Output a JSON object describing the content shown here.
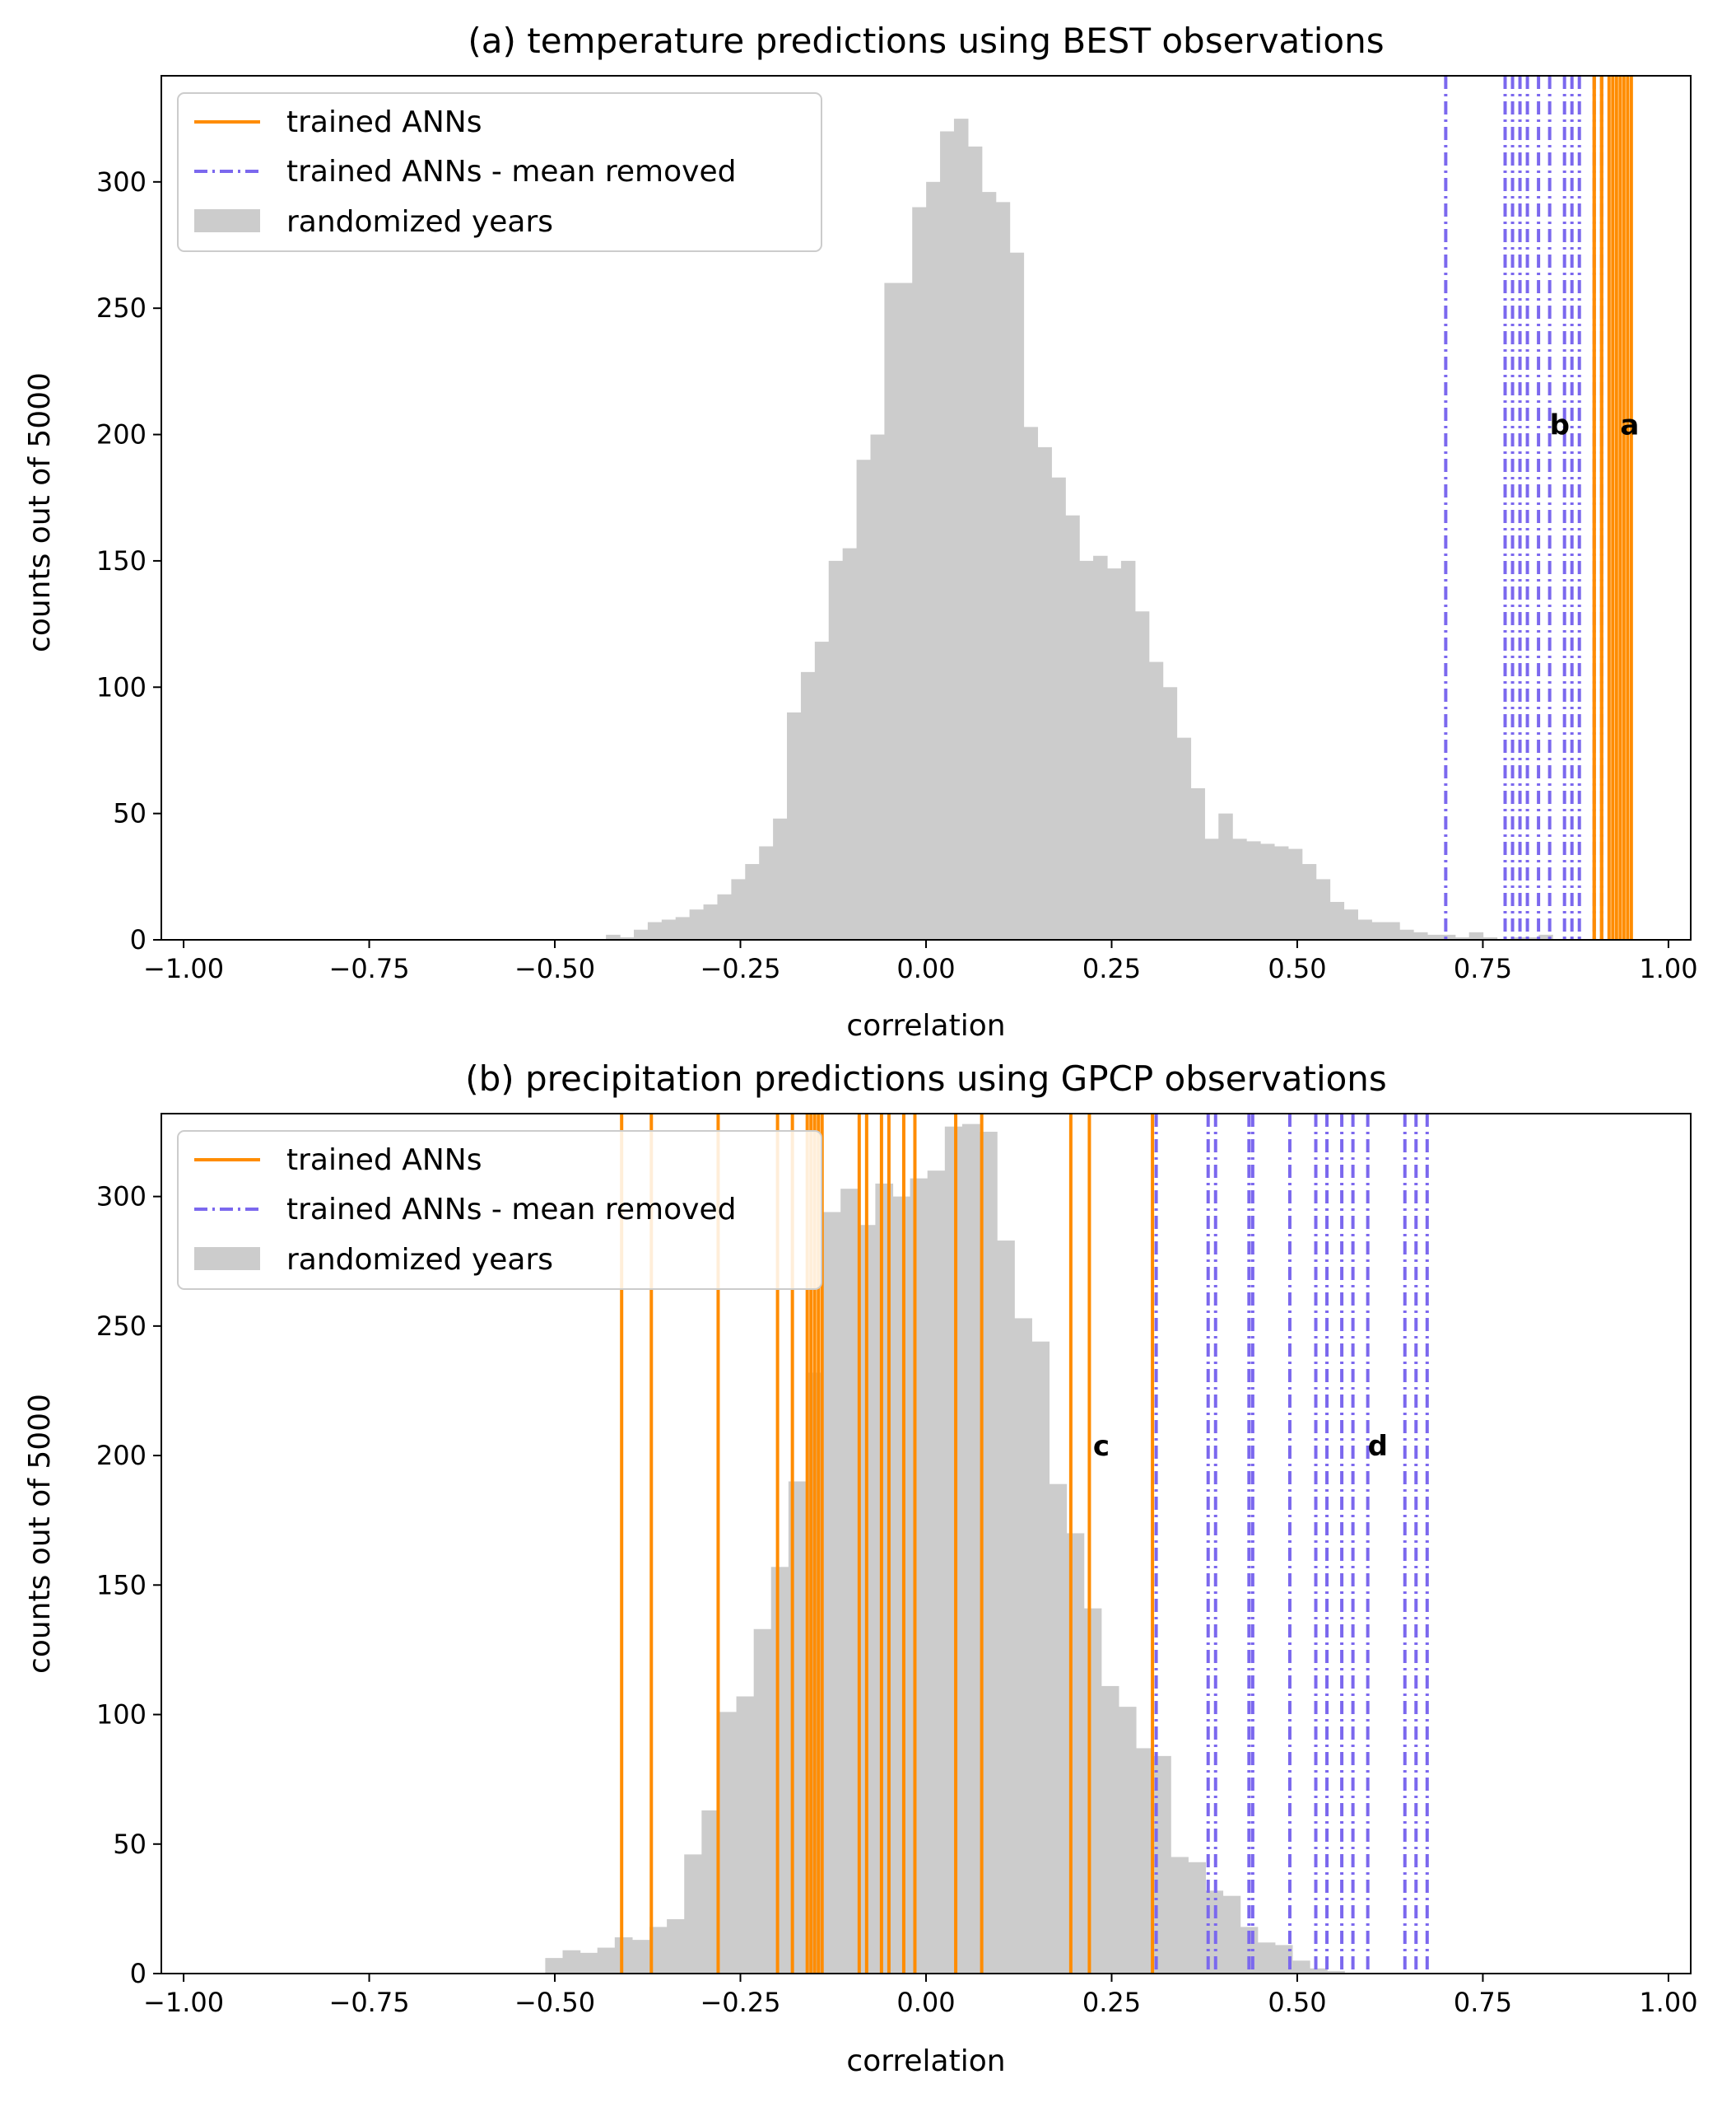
{
  "colors": {
    "orange": "#ff8c00",
    "purple": "#7b68ee",
    "gray": "#cccccc"
  },
  "legend": {
    "trained": "trained ANNs",
    "mean_removed": "trained ANNs - mean removed",
    "randomized": "randomized years"
  },
  "chart_data": [
    {
      "type": "bar",
      "title": "(a) temperature predictions using BEST observations",
      "xlabel": "correlation",
      "ylabel": "counts out of 5000",
      "xlim": [
        -1.03,
        1.03
      ],
      "ylim": [
        0,
        342
      ],
      "xticks": [
        "−1.00",
        "−0.75",
        "−0.50",
        "−0.25",
        "0.00",
        "0.25",
        "0.50",
        "0.75",
        "1.00"
      ],
      "xtick_values": [
        -1.0,
        -0.75,
        -0.5,
        -0.25,
        0.0,
        0.25,
        0.5,
        0.75,
        1.0
      ],
      "yticks": [
        "0",
        "50",
        "100",
        "150",
        "200",
        "250",
        "300"
      ],
      "ytick_values": [
        0,
        50,
        100,
        150,
        200,
        250,
        300
      ],
      "hist": {
        "name": "randomized years",
        "start": -0.4311,
        "bin_width": 0.01875,
        "counts": [
          2,
          1,
          4,
          7,
          8,
          9,
          12,
          14,
          18,
          24,
          30,
          37,
          48,
          90,
          106,
          118,
          150,
          155,
          190,
          200,
          260,
          260,
          290,
          300,
          320,
          325,
          314,
          296,
          292,
          272,
          203,
          195,
          183,
          168,
          150,
          152,
          147,
          150,
          130,
          110,
          100,
          80,
          60,
          40,
          50,
          40,
          39,
          38,
          37,
          36,
          30,
          24,
          15,
          12,
          8,
          7,
          7,
          4,
          3,
          2,
          2,
          1,
          3,
          1,
          0,
          1,
          1,
          2,
          0,
          0
        ]
      },
      "trained": [
        0.9,
        0.91,
        0.9,
        0.91,
        0.92,
        0.925,
        0.93,
        0.935,
        0.94,
        0.945,
        0.95
      ],
      "mean_removed": [
        0.7,
        0.78,
        0.79,
        0.8,
        0.81,
        0.825,
        0.84,
        0.86,
        0.87,
        0.88,
        0.9,
        0.91
      ],
      "annotations": [
        {
          "text": "b",
          "x": 0.84,
          "y": 200
        },
        {
          "text": "a",
          "x": 0.935,
          "y": 200
        }
      ]
    },
    {
      "type": "bar",
      "title": "(b) precipitation predictions using GPCP observations",
      "xlabel": "correlation",
      "ylabel": "counts out of 5000",
      "xlim": [
        -1.03,
        1.03
      ],
      "ylim": [
        0,
        332
      ],
      "xticks": [
        "−1.00",
        "−0.75",
        "−0.50",
        "−0.25",
        "0.00",
        "0.25",
        "0.50",
        "0.75",
        "1.00"
      ],
      "xtick_values": [
        -1.0,
        -0.75,
        -0.5,
        -0.25,
        0.0,
        0.25,
        0.5,
        0.75,
        1.0
      ],
      "yticks": [
        "0",
        "50",
        "100",
        "150",
        "200",
        "250",
        "300"
      ],
      "ytick_values": [
        0,
        50,
        100,
        150,
        200,
        250,
        300
      ],
      "hist": {
        "name": "randomized years",
        "start": -0.5129,
        "bin_width": 0.0234,
        "counts": [
          6,
          9,
          8,
          10,
          14,
          13,
          18,
          21,
          46,
          63,
          101,
          107,
          133,
          157,
          190,
          232,
          294,
          303,
          289,
          305,
          300,
          307,
          310,
          327,
          328,
          325,
          283,
          253,
          244,
          189,
          170,
          141,
          111,
          103,
          87,
          84,
          45,
          43,
          32,
          30,
          18,
          12,
          11,
          5,
          2,
          1
        ]
      },
      "trained": [
        -0.41,
        -0.37,
        -0.28,
        -0.2,
        -0.18,
        -0.16,
        -0.155,
        -0.15,
        -0.145,
        -0.14,
        -0.09,
        -0.08,
        -0.06,
        -0.05,
        -0.03,
        -0.015,
        0.04,
        0.075,
        0.195,
        0.22,
        0.305
      ],
      "mean_removed": [
        0.31,
        0.38,
        0.39,
        0.435,
        0.44,
        0.49,
        0.525,
        0.54,
        0.56,
        0.575,
        0.595,
        0.645,
        0.66,
        0.675
      ],
      "annotations": [
        {
          "text": "c",
          "x": 0.225,
          "y": 200
        },
        {
          "text": "d",
          "x": 0.595,
          "y": 200
        }
      ]
    }
  ]
}
